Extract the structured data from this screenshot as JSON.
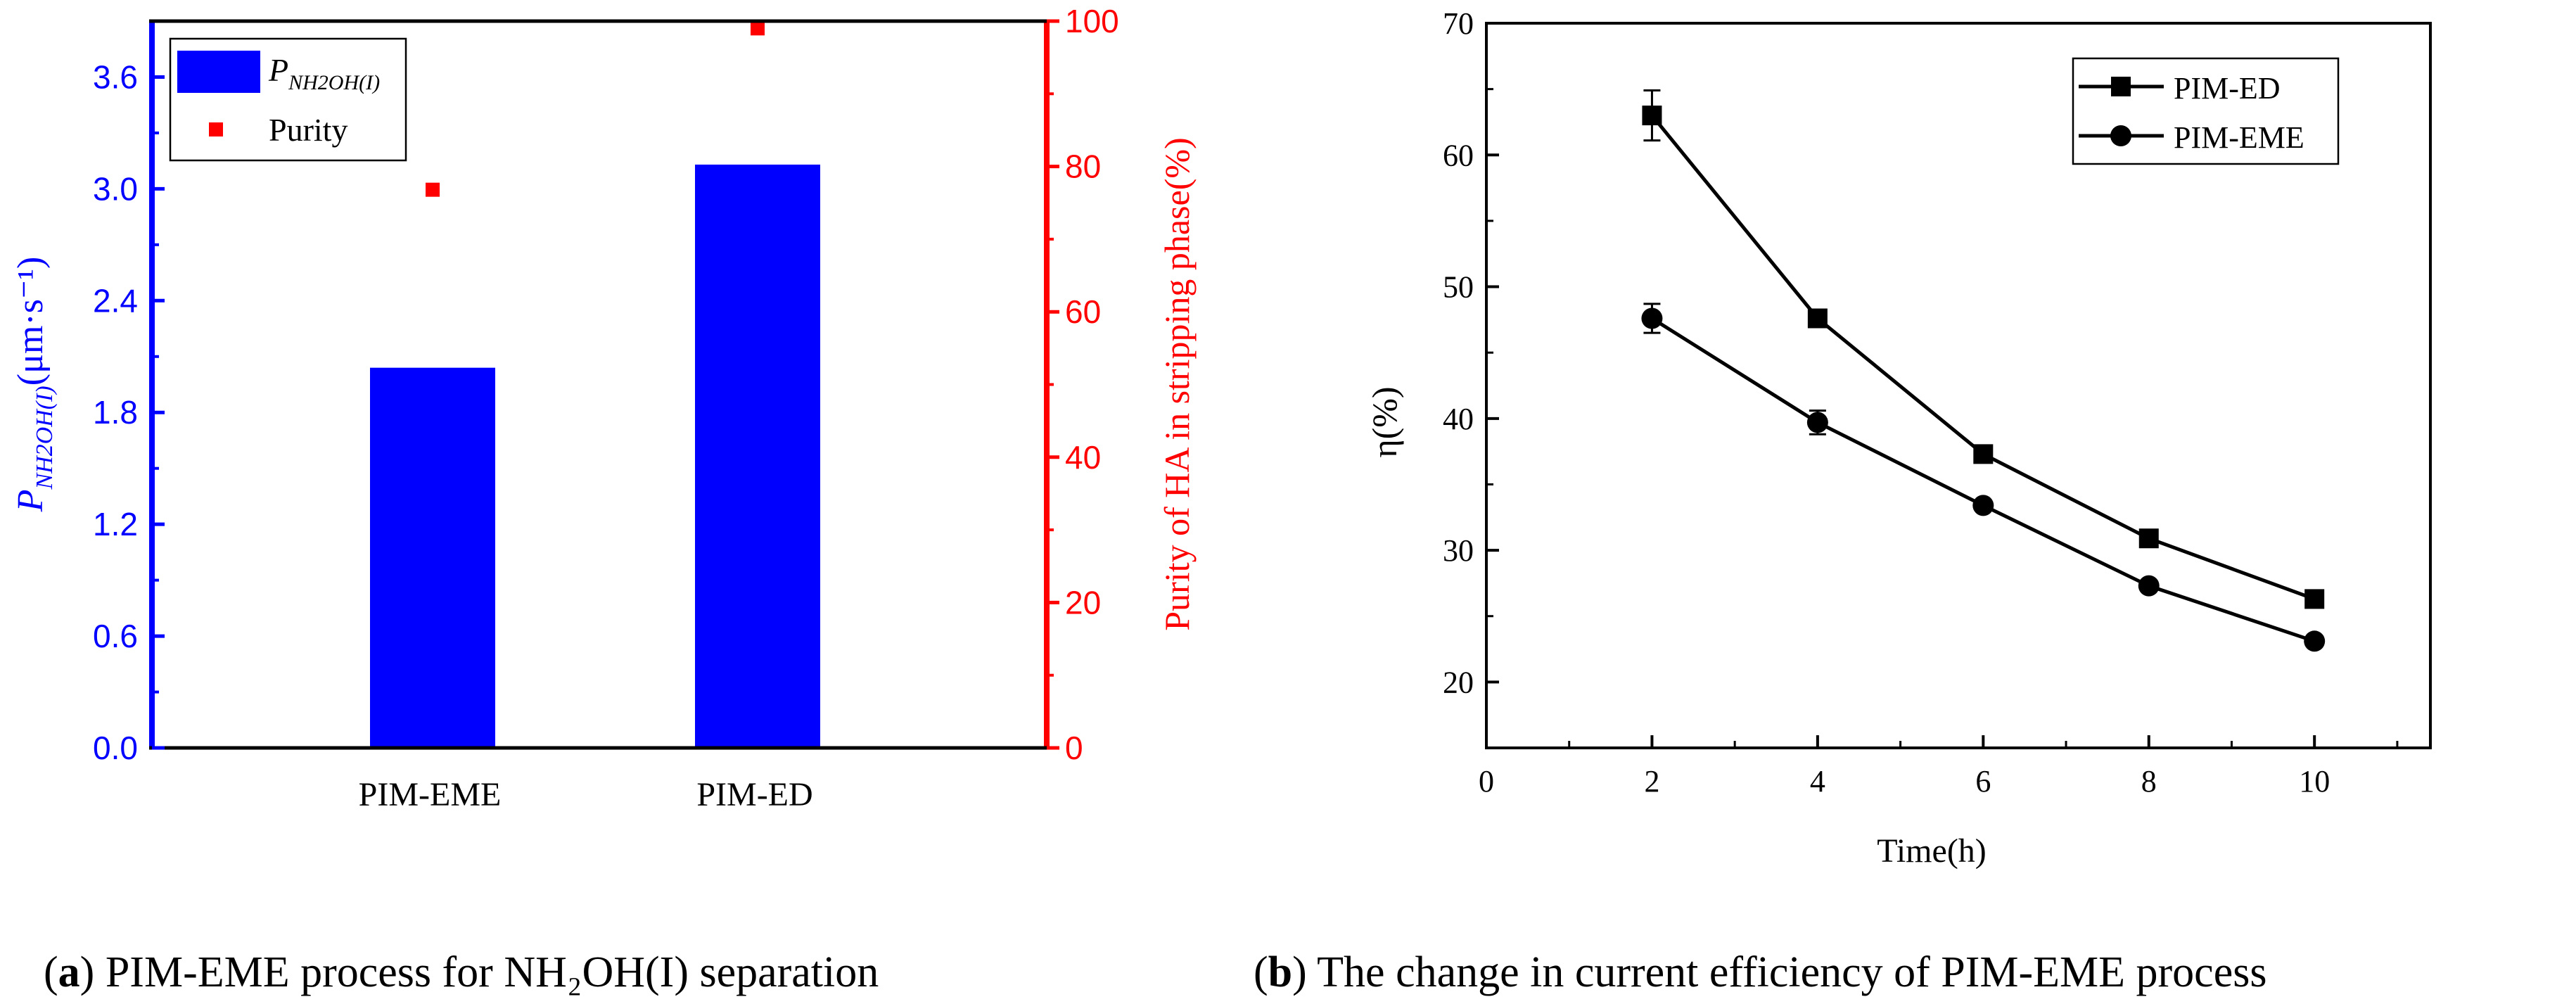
{
  "figure_captions": {
    "a": {
      "label": "a",
      "text": " PIM-EME process for NH₂OH(I) separation"
    },
    "b": {
      "label": "b",
      "text": " The change in current efficiency of PIM-EME process"
    }
  },
  "colors": {
    "blue": "#0000ff",
    "red": "#ff0000",
    "black": "#000000"
  },
  "chart_data": [
    {
      "id": "a",
      "type": "bar",
      "categories": [
        "PIM-EME",
        "PIM-ED"
      ],
      "series": [
        {
          "name": "P_NH2OH(I)",
          "axis": "left",
          "kind": "bar",
          "values": [
            2.04,
            3.13
          ]
        },
        {
          "name": "Purity",
          "axis": "right",
          "kind": "scatter",
          "values": [
            76.8,
            99.0
          ]
        }
      ],
      "legend": [
        {
          "label": "P",
          "subscript": "NH2OH(I)",
          "kind": "bar"
        },
        {
          "label": "Purity",
          "kind": "scatter"
        }
      ],
      "left_axis": {
        "label_main": "P",
        "label_sub": "NH2OH(I)",
        "label_units": "(μm·s⁻¹)",
        "ylim": [
          0,
          3.9
        ],
        "ticks": [
          "0.0",
          "0.6",
          "1.2",
          "1.8",
          "2.4",
          "3.0",
          "3.6"
        ]
      },
      "right_axis": {
        "label": "Purity of HA in stripping phase(%)",
        "ylim": [
          0,
          100
        ],
        "ticks": [
          "0",
          "20",
          "40",
          "60",
          "80",
          "100"
        ]
      },
      "legend_position": "top-left"
    },
    {
      "id": "b",
      "type": "line",
      "xlabel": "Time(h)",
      "ylabel": "η(%)",
      "xlim": [
        0,
        11.4
      ],
      "ylim": [
        15,
        70
      ],
      "xticks": [
        "0",
        "2",
        "4",
        "6",
        "8",
        "10"
      ],
      "yticks": [
        "20",
        "30",
        "40",
        "50",
        "60",
        "70"
      ],
      "series": [
        {
          "name": "PIM-ED",
          "marker": "square",
          "x": [
            2,
            4,
            6,
            8,
            10
          ],
          "y": [
            63.0,
            47.6,
            37.3,
            30.9,
            26.3
          ],
          "err": [
            1.9,
            0,
            0,
            0,
            0
          ]
        },
        {
          "name": "PIM-EME",
          "marker": "circle",
          "x": [
            2,
            4,
            6,
            8,
            10
          ],
          "y": [
            47.6,
            39.7,
            33.4,
            27.3,
            23.1
          ],
          "err": [
            1.1,
            0.9,
            0,
            0,
            0
          ]
        }
      ],
      "legend_position": "top-right"
    }
  ]
}
